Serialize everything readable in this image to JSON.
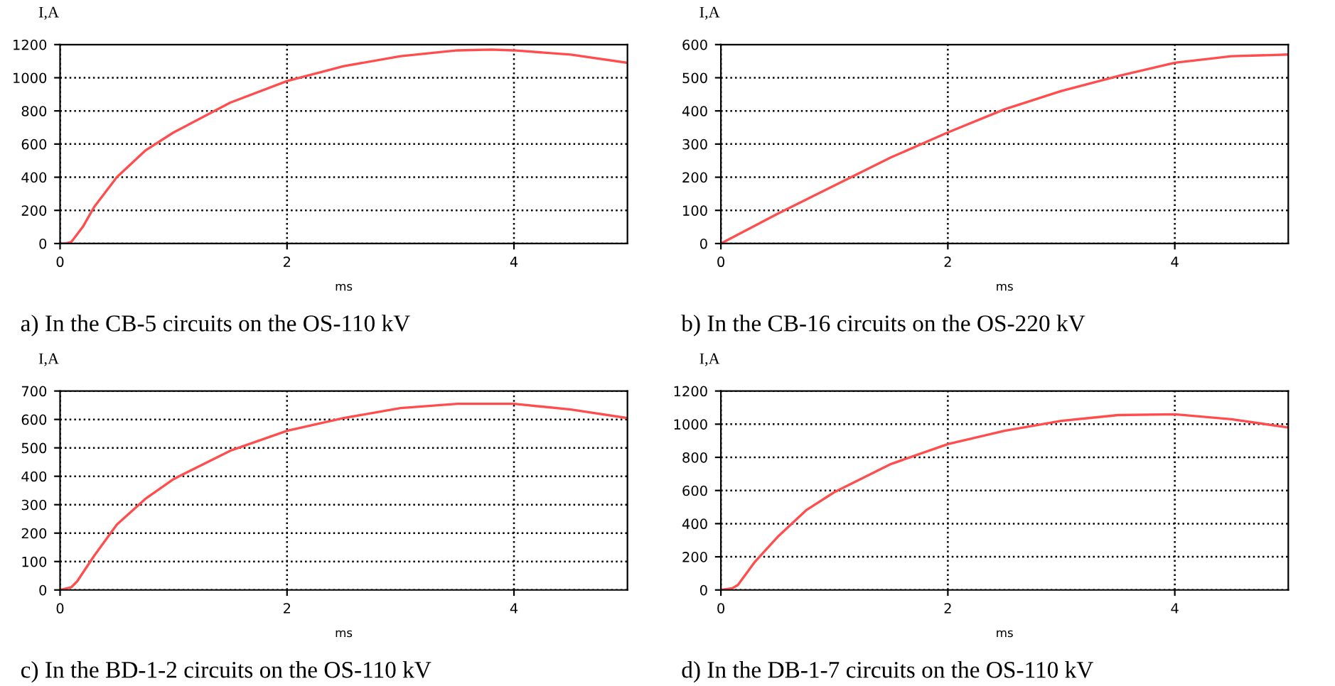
{
  "chart_data": [
    {
      "type": "line",
      "title": "a) In the CB-5 circuits on the OS-110 kV",
      "xlabel": "ms",
      "ylabel": "I,A",
      "grid": true,
      "legend": false,
      "marker": "none",
      "line_style": "solid",
      "xlim": [
        0,
        5
      ],
      "xticks": [
        0,
        2,
        4
      ],
      "ylim": [
        0,
        1200
      ],
      "yticks": [
        0,
        200,
        400,
        600,
        800,
        1000,
        1200
      ],
      "series": [
        {
          "color": "#ff4d4d",
          "x": [
            0,
            0.05,
            0.1,
            0.2,
            0.3,
            0.5,
            0.75,
            1,
            1.5,
            2,
            2.5,
            3,
            3.5,
            3.8,
            4,
            4.5,
            5
          ],
          "values": [
            0,
            0,
            10,
            100,
            220,
            400,
            560,
            670,
            850,
            980,
            1070,
            1130,
            1165,
            1170,
            1165,
            1140,
            1090
          ]
        }
      ]
    },
    {
      "type": "line",
      "title": "b) In the CB-16 circuits on the OS-220 kV",
      "xlabel": "ms",
      "ylabel": "I,A",
      "grid": true,
      "legend": false,
      "marker": "none",
      "line_style": "solid",
      "xlim": [
        0,
        5
      ],
      "xticks": [
        0,
        2,
        4
      ],
      "ylim": [
        0,
        600
      ],
      "yticks": [
        0,
        100,
        200,
        300,
        400,
        500,
        600
      ],
      "series": [
        {
          "color": "#ff4d4d",
          "x": [
            0,
            0.5,
            1,
            1.5,
            2,
            2.5,
            3,
            3.5,
            4,
            4.5,
            5
          ],
          "values": [
            0,
            90,
            175,
            260,
            335,
            405,
            460,
            505,
            545,
            565,
            570
          ]
        }
      ]
    },
    {
      "type": "line",
      "title": "c) In the BD-1-2 circuits on the OS-110 kV",
      "xlabel": "ms",
      "ylabel": "I,A",
      "grid": true,
      "legend": false,
      "marker": "none",
      "line_style": "solid",
      "xlim": [
        0,
        5
      ],
      "xticks": [
        0,
        2,
        4
      ],
      "ylim": [
        0,
        700
      ],
      "yticks": [
        0,
        100,
        200,
        300,
        400,
        500,
        600,
        700
      ],
      "series": [
        {
          "color": "#ff4d4d",
          "x": [
            0,
            0.1,
            0.15,
            0.3,
            0.5,
            0.75,
            1,
            1.5,
            2,
            2.5,
            3,
            3.5,
            4,
            4.5,
            5
          ],
          "values": [
            0,
            10,
            30,
            120,
            230,
            320,
            390,
            490,
            560,
            605,
            640,
            655,
            655,
            635,
            605
          ]
        }
      ]
    },
    {
      "type": "line",
      "title": "d) In the DB-1-7 circuits on the OS-110 kV",
      "xlabel": "ms",
      "ylabel": "I,A",
      "grid": true,
      "legend": false,
      "marker": "none",
      "line_style": "solid",
      "xlim": [
        0,
        5
      ],
      "xticks": [
        0,
        2,
        4
      ],
      "ylim": [
        0,
        1200
      ],
      "yticks": [
        0,
        200,
        400,
        600,
        800,
        1000,
        1200
      ],
      "series": [
        {
          "color": "#ff4d4d",
          "x": [
            0,
            0.1,
            0.15,
            0.3,
            0.5,
            0.75,
            1,
            1.5,
            2,
            2.5,
            3,
            3.5,
            4,
            4.5,
            5
          ],
          "values": [
            0,
            10,
            30,
            170,
            320,
            480,
            590,
            760,
            880,
            960,
            1020,
            1055,
            1060,
            1030,
            980
          ]
        }
      ]
    }
  ]
}
